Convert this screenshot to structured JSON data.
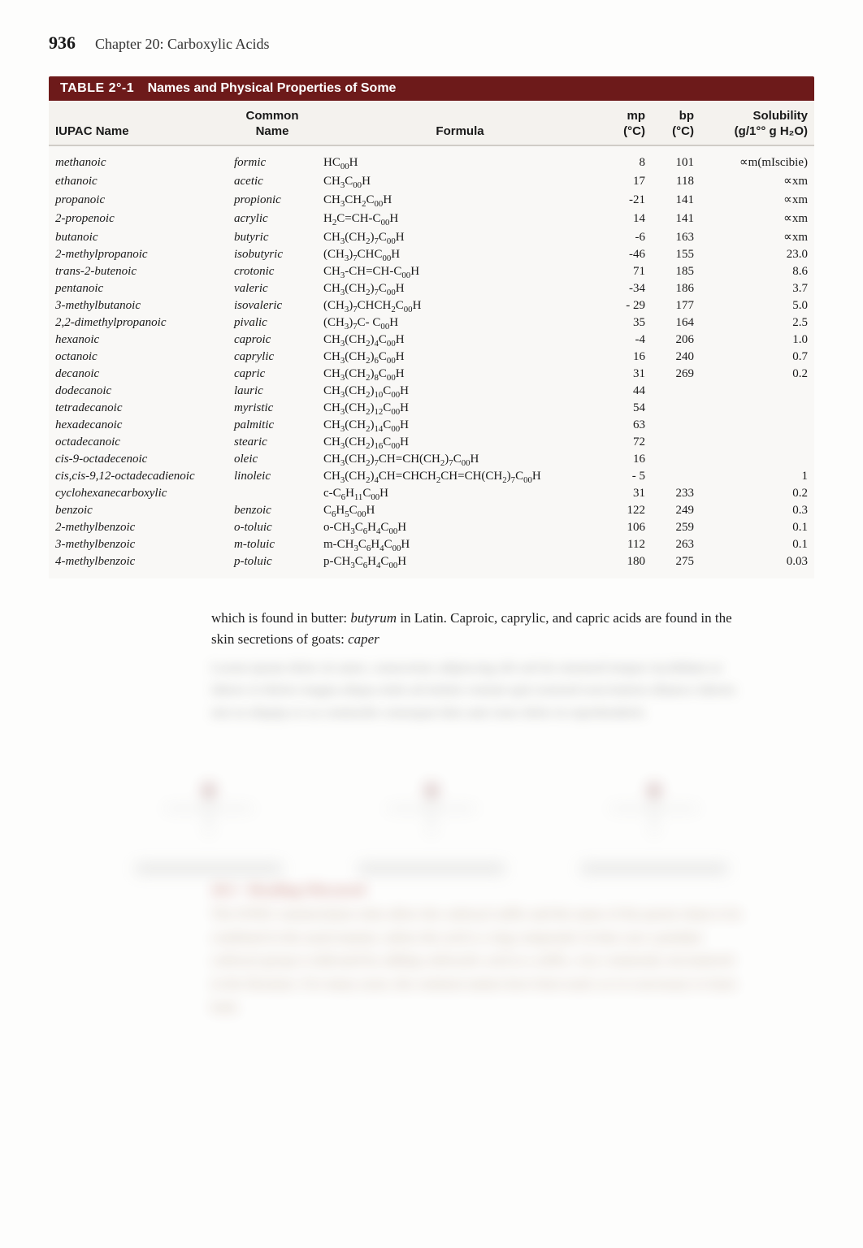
{
  "page": {
    "number": "936",
    "chapter": "Chapter 20: Carboxylic Acids"
  },
  "table": {
    "label": "TABLE 2°-1",
    "caption": "Names and Physical Properties of Some",
    "columns": {
      "iupac": "IUPAC Name",
      "common_l1": "Common",
      "common_l2": "Name",
      "formula": "Formula",
      "mp_l1": "mp",
      "mp_l2": "(°C)",
      "bp_l1": "bp",
      "bp_l2": "(°C)",
      "sol_l1": "Solubility",
      "sol_l2": "(g/1°° g H₂O)"
    },
    "rows": [
      {
        "iupac": "methanoic",
        "common": "formic",
        "formula": "HC<sub>00</sub>H",
        "mp": "8",
        "bp": "101",
        "sol": "∝m(mIscibie)"
      },
      {
        "iupac": "ethanoic",
        "common": "acetic",
        "formula": "CH<sub>3</sub>C<sub>00</sub>H",
        "mp": "17",
        "bp": "118",
        "sol": "∝xm"
      },
      {
        "iupac": "propanoic",
        "common": "propionic",
        "formula": "CH<sub>3</sub>CH<sub>2</sub>C<sub>00</sub>H",
        "mp": "-21",
        "bp": "141",
        "sol": "∝xm"
      },
      {
        "iupac": "2-propenoic",
        "common": "acrylic",
        "formula": "H<sub>2</sub>C=CH-C<sub>00</sub>H",
        "mp": "14",
        "bp": "141",
        "sol": "∝xm"
      },
      {
        "iupac": "butanoic",
        "common": "butyric",
        "formula": "CH<sub>3</sub>(CH<sub>2</sub>)<sub>7</sub>C<sub>00</sub>H",
        "mp": "-6",
        "bp": "163",
        "sol": "∝xm"
      },
      {
        "iupac": "2-methylpropanoic",
        "common": "isobutyric",
        "formula": "(CH<sub>3</sub>)<sub>7</sub>CHC<sub>00</sub>H",
        "mp": "-46",
        "bp": "155",
        "sol": "23.0"
      },
      {
        "iupac": "trans-2-butenoic",
        "common": "crotonic",
        "formula": "CH<sub>3</sub>-CH=CH-C<sub>00</sub>H",
        "mp": "71",
        "bp": "185",
        "sol": "8.6"
      },
      {
        "iupac": "pentanoic",
        "common": "valeric",
        "formula": "CH<sub>3</sub>(CH<sub>2</sub>)<sub>7</sub>C<sub>00</sub>H",
        "mp": "-34",
        "bp": "186",
        "sol": "3.7"
      },
      {
        "iupac": "3-methylbutanoic",
        "common": "isovaleric",
        "formula": "(CH<sub>3</sub>)<sub>7</sub>CHCH<sub>2</sub>C<sub>00</sub>H",
        "mp": "- 29",
        "bp": "177",
        "sol": "5.0"
      },
      {
        "iupac": "2,2-dimethylpropanoic",
        "common": "pivalic",
        "formula": "(CH<sub>3</sub>)<sub>7</sub>C-  C<sub>00</sub>H",
        "mp": "35",
        "bp": "164",
        "sol": "2.5"
      },
      {
        "iupac": "hexanoic",
        "common": "caproic",
        "formula": "CH<sub>3</sub>(CH<sub>2</sub>)<sub>4</sub>C<sub>00</sub>H",
        "mp": "-4",
        "bp": "206",
        "sol": "1.0"
      },
      {
        "iupac": "octanoic",
        "common": "caprylic",
        "formula": "CH<sub>3</sub>(CH<sub>2</sub>)<sub>6</sub>C<sub>00</sub>H",
        "mp": "16",
        "bp": "240",
        "sol": "0.7"
      },
      {
        "iupac": "decanoic",
        "common": "capric",
        "formula": "CH<sub>3</sub>(CH<sub>2</sub>)<sub>8</sub>C<sub>00</sub>H",
        "mp": "31",
        "bp": "269",
        "sol": "0.2"
      },
      {
        "iupac": "dodecanoic",
        "common": "lauric",
        "formula": "CH<sub>3</sub>(CH<sub>2</sub>)<sub>10</sub>C<sub>00</sub>H",
        "mp": "44",
        "bp": "",
        "sol": ""
      },
      {
        "iupac": "tetradecanoic",
        "common": "myristic",
        "formula": "CH<sub>3</sub>(CH<sub>2</sub>)<sub>12</sub>C<sub>00</sub>H",
        "mp": "54",
        "bp": "",
        "sol": ""
      },
      {
        "iupac": "hexadecanoic",
        "common": "palmitic",
        "formula": "CH<sub>3</sub>(CH<sub>2</sub>)<sub>14</sub>C<sub>00</sub>H",
        "mp": "63",
        "bp": "",
        "sol": ""
      },
      {
        "iupac": "octadecanoic",
        "common": "stearic",
        "formula": "CH<sub>3</sub>(CH<sub>2</sub>)<sub>16</sub>C<sub>00</sub>H",
        "mp": "72",
        "bp": "",
        "sol": ""
      },
      {
        "iupac": "cis-9-octadecenoic",
        "common": "oleic",
        "formula": "CH<sub>3</sub>(CH<sub>2</sub>)<sub>7</sub>CH=CH(CH<sub>2</sub>)<sub>7</sub>C<sub>00</sub>H",
        "mp": "16",
        "bp": "",
        "sol": ""
      },
      {
        "iupac": "cis,cis-9,12-octadecadienoic",
        "common": "linoleic",
        "formula": "CH<sub>3</sub>(CH<sub>2</sub>)<sub>4</sub>CH=CHCH<sub>2</sub>CH=CH(CH<sub>2</sub>)<sub>7</sub>C<sub>00</sub>H",
        "mp": "- 5",
        "bp": "",
        "sol": "1"
      },
      {
        "iupac": "cyclohexanecarboxylic",
        "common": "",
        "formula": "c-C<sub>6</sub>H<sub>11</sub>C<sub>00</sub>H",
        "mp": "31",
        "bp": "233",
        "sol": "0.2"
      },
      {
        "iupac": "benzoic",
        "common": "benzoic",
        "formula": "C<sub>6</sub>H<sub>5</sub>C<sub>00</sub>H",
        "mp": "122",
        "bp": "249",
        "sol": "0.3"
      },
      {
        "iupac": "2-methylbenzoic",
        "common": "o-toluic",
        "formula": "o-CH<sub>3</sub>C<sub>6</sub>H<sub>4</sub>C<sub>00</sub>H",
        "mp": "106",
        "bp": "259",
        "sol": "0.1"
      },
      {
        "iupac": "3-methylbenzoic",
        "common": "m-toluic",
        "formula": "m-CH<sub>3</sub>C<sub>6</sub>H<sub>4</sub>C<sub>00</sub>H",
        "mp": "112",
        "bp": "263",
        "sol": "0.1"
      },
      {
        "iupac": "4-methylbenzoic",
        "common": "p-toluic",
        "formula": "p-CH<sub>3</sub>C<sub>6</sub>H<sub>4</sub>C<sub>00</sub>H",
        "mp": "180",
        "bp": "275",
        "sol": "0.03"
      }
    ]
  },
  "paragraph": {
    "text_before": "which is found in butter: ",
    "latin1": "butyrum",
    "text_mid": " in Latin. Caproic, caprylic, and capric acids are found in the skin secretions of goats: ",
    "latin2": "caper"
  }
}
